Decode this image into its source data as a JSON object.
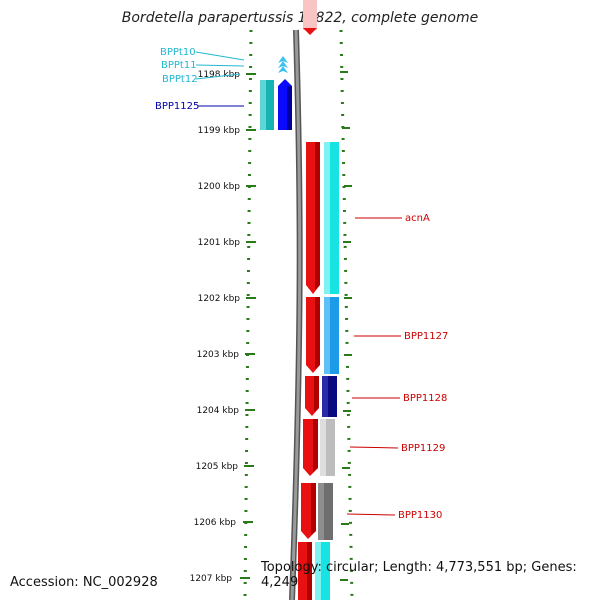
{
  "title": "Bordetella parapertussis 12822, complete genome",
  "footer": {
    "accession": "Accession: NC_002928",
    "topology": "Topology: circular; Length: 4,773,551 bp; Genes: 4,249"
  },
  "ruler": {
    "tick_labels": [
      "1198 kbp",
      "1199 kbp",
      "1200 kbp",
      "1201 kbp",
      "1202 kbp",
      "1203 kbp",
      "1204 kbp",
      "1205 kbp",
      "1206 kbp",
      "1207 kbp"
    ]
  },
  "features": [
    {
      "label": "BPPt10",
      "color": "#22b8d0",
      "type": "tRNA"
    },
    {
      "label": "BPPt11",
      "color": "#22b8d0",
      "type": "tRNA"
    },
    {
      "label": "BPPt12",
      "color": "#22b8d0",
      "type": "tRNA"
    },
    {
      "label": "BPP1125",
      "color": "#0000aa",
      "type": "gene"
    },
    {
      "label": "acnA",
      "color": "#cc0000",
      "type": "gene"
    },
    {
      "label": "BPP1127",
      "color": "#cc0000",
      "type": "gene"
    },
    {
      "label": "BPP1128",
      "color": "#cc0000",
      "type": "gene"
    },
    {
      "label": "BPP1129",
      "color": "#cc0000",
      "type": "gene"
    },
    {
      "label": "BPP1130",
      "color": "#cc0000",
      "type": "gene"
    }
  ],
  "colors": {
    "backbone": "#8c8c8c",
    "tick_green": "#2a7a1a",
    "forward_red": "#e81010",
    "cyan": "#17e3e3",
    "blue": "#0a0aff",
    "navy": "#0a0a80",
    "gray": "#bdbdbd",
    "dark_gray": "#6e6e6e",
    "teal": "#17b3b3"
  }
}
